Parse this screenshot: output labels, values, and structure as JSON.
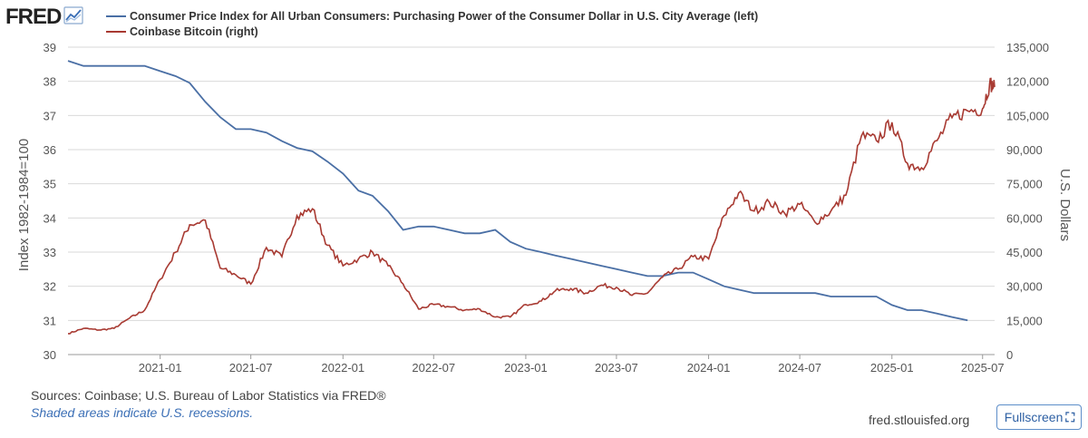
{
  "header": {
    "logo": "FRED",
    "logo_icon": "fred-chart-icon"
  },
  "legend": [
    {
      "label": "Consumer Price Index for All Urban Consumers: Purchasing Power of the Consumer Dollar in U.S. City Average (left)",
      "color": "#4a6fa5"
    },
    {
      "label": "Coinbase Bitcoin (right)",
      "color": "#a83a32"
    }
  ],
  "chart_data": {
    "type": "line",
    "y_left": {
      "label": "Index 1982-1984=100",
      "range": [
        30,
        39
      ],
      "ticks": [
        "39",
        "38",
        "37",
        "36",
        "35",
        "34",
        "33",
        "32",
        "31",
        "30"
      ]
    },
    "y_right": {
      "label": "U.S. Dollars",
      "range": [
        0,
        135000
      ],
      "ticks": [
        "135,000",
        "120,000",
        "105,000",
        "90,000",
        "75,000",
        "60,000",
        "45,000",
        "30,000",
        "15,000",
        "0"
      ]
    },
    "x": {
      "range": [
        "2020-07-01",
        "2025-07-25"
      ],
      "ticks": [
        "2021-01",
        "2021-07",
        "2022-01",
        "2022-07",
        "2023-01",
        "2023-07",
        "2024-01",
        "2024-07",
        "2025-01",
        "2025-07"
      ]
    },
    "grid": true,
    "series": [
      {
        "name": "Consumer Price Index for All Urban Consumers: Purchasing Power of the Consumer Dollar in U.S. City Average (left)",
        "axis": "left",
        "color": "#4a6fa5",
        "points": [
          [
            "2020-07-01",
            38.6
          ],
          [
            "2020-08-01",
            38.45
          ],
          [
            "2020-09-01",
            38.45
          ],
          [
            "2020-10-01",
            38.45
          ],
          [
            "2020-11-01",
            38.45
          ],
          [
            "2020-12-01",
            38.45
          ],
          [
            "2021-01-01",
            38.3
          ],
          [
            "2021-02-01",
            38.15
          ],
          [
            "2021-03-01",
            37.95
          ],
          [
            "2021-04-01",
            37.4
          ],
          [
            "2021-05-01",
            36.95
          ],
          [
            "2021-06-01",
            36.6
          ],
          [
            "2021-07-01",
            36.6
          ],
          [
            "2021-08-01",
            36.5
          ],
          [
            "2021-09-01",
            36.25
          ],
          [
            "2021-10-01",
            36.05
          ],
          [
            "2021-11-01",
            35.95
          ],
          [
            "2021-12-01",
            35.65
          ],
          [
            "2022-01-01",
            35.3
          ],
          [
            "2022-02-01",
            34.8
          ],
          [
            "2022-03-01",
            34.65
          ],
          [
            "2022-04-01",
            34.2
          ],
          [
            "2022-05-01",
            33.65
          ],
          [
            "2022-06-01",
            33.75
          ],
          [
            "2022-07-01",
            33.75
          ],
          [
            "2022-08-01",
            33.65
          ],
          [
            "2022-09-01",
            33.55
          ],
          [
            "2022-10-01",
            33.55
          ],
          [
            "2022-11-01",
            33.65
          ],
          [
            "2022-12-01",
            33.3
          ],
          [
            "2023-01-01",
            33.1
          ],
          [
            "2023-02-01",
            33.0
          ],
          [
            "2023-03-01",
            32.9
          ],
          [
            "2023-04-01",
            32.8
          ],
          [
            "2023-05-01",
            32.7
          ],
          [
            "2023-06-01",
            32.6
          ],
          [
            "2023-07-01",
            32.5
          ],
          [
            "2023-08-01",
            32.4
          ],
          [
            "2023-09-01",
            32.3
          ],
          [
            "2023-10-01",
            32.3
          ],
          [
            "2023-11-01",
            32.4
          ],
          [
            "2023-12-01",
            32.4
          ],
          [
            "2024-01-01",
            32.2
          ],
          [
            "2024-02-01",
            32.0
          ],
          [
            "2024-03-01",
            31.9
          ],
          [
            "2024-04-01",
            31.8
          ],
          [
            "2024-05-01",
            31.8
          ],
          [
            "2024-06-01",
            31.8
          ],
          [
            "2024-07-01",
            31.8
          ],
          [
            "2024-08-01",
            31.8
          ],
          [
            "2024-09-01",
            31.7
          ],
          [
            "2024-10-01",
            31.7
          ],
          [
            "2024-11-01",
            31.7
          ],
          [
            "2024-12-01",
            31.7
          ],
          [
            "2025-01-01",
            31.45
          ],
          [
            "2025-02-01",
            31.3
          ],
          [
            "2025-03-01",
            31.3
          ],
          [
            "2025-04-01",
            31.2
          ],
          [
            "2025-05-01",
            31.1
          ],
          [
            "2025-06-01",
            31.0
          ]
        ]
      },
      {
        "name": "Coinbase Bitcoin (right)",
        "axis": "right",
        "color": "#a83a32",
        "points": [
          [
            "2020-07-01",
            9200
          ],
          [
            "2020-08-01",
            11500
          ],
          [
            "2020-09-01",
            10800
          ],
          [
            "2020-10-01",
            11500
          ],
          [
            "2020-11-01",
            16000
          ],
          [
            "2020-12-01",
            19500
          ],
          [
            "2021-01-01",
            33000
          ],
          [
            "2021-02-01",
            45000
          ],
          [
            "2021-03-01",
            57000
          ],
          [
            "2021-04-01",
            59000
          ],
          [
            "2021-05-01",
            38000
          ],
          [
            "2021-06-01",
            35000
          ],
          [
            "2021-07-01",
            31000
          ],
          [
            "2021-08-01",
            47000
          ],
          [
            "2021-09-01",
            43000
          ],
          [
            "2021-10-01",
            61000
          ],
          [
            "2021-11-01",
            64000
          ],
          [
            "2021-12-01",
            48000
          ],
          [
            "2022-01-01",
            39000
          ],
          [
            "2022-02-01",
            42000
          ],
          [
            "2022-03-01",
            45000
          ],
          [
            "2022-04-01",
            39000
          ],
          [
            "2022-05-01",
            31000
          ],
          [
            "2022-06-01",
            20000
          ],
          [
            "2022-07-01",
            22000
          ],
          [
            "2022-08-01",
            21000
          ],
          [
            "2022-09-01",
            19500
          ],
          [
            "2022-10-01",
            20000
          ],
          [
            "2022-11-01",
            16500
          ],
          [
            "2022-12-01",
            16500
          ],
          [
            "2023-01-01",
            22000
          ],
          [
            "2023-02-01",
            23500
          ],
          [
            "2023-03-01",
            28000
          ],
          [
            "2023-04-01",
            29000
          ],
          [
            "2023-05-01",
            27000
          ],
          [
            "2023-06-01",
            30500
          ],
          [
            "2023-07-01",
            29500
          ],
          [
            "2023-08-01",
            26000
          ],
          [
            "2023-09-01",
            27000
          ],
          [
            "2023-10-01",
            34000
          ],
          [
            "2023-11-01",
            37500
          ],
          [
            "2023-12-01",
            43000
          ],
          [
            "2024-01-01",
            42000
          ],
          [
            "2024-02-01",
            61000
          ],
          [
            "2024-03-01",
            71000
          ],
          [
            "2024-04-01",
            63000
          ],
          [
            "2024-05-01",
            67000
          ],
          [
            "2024-06-01",
            62000
          ],
          [
            "2024-07-01",
            66000
          ],
          [
            "2024-08-01",
            58000
          ],
          [
            "2024-09-01",
            63000
          ],
          [
            "2024-10-01",
            70000
          ],
          [
            "2024-11-01",
            96000
          ],
          [
            "2024-12-01",
            94000
          ],
          [
            "2025-01-01",
            102000
          ],
          [
            "2025-02-01",
            84000
          ],
          [
            "2025-03-01",
            82000
          ],
          [
            "2025-04-01",
            94000
          ],
          [
            "2025-05-01",
            104000
          ],
          [
            "2025-06-01",
            107000
          ],
          [
            "2025-07-01",
            108000
          ],
          [
            "2025-07-15",
            119000
          ],
          [
            "2025-07-25",
            117500
          ]
        ]
      }
    ]
  },
  "footer": {
    "sources": "Sources: Coinbase; U.S. Bureau of Labor Statistics via FRED®",
    "recession_note": "Shaded areas indicate U.S. recessions.",
    "site": "fred.stlouisfed.org",
    "fullscreen_label": "Fullscreen",
    "fullscreen_icon": "⛶"
  }
}
